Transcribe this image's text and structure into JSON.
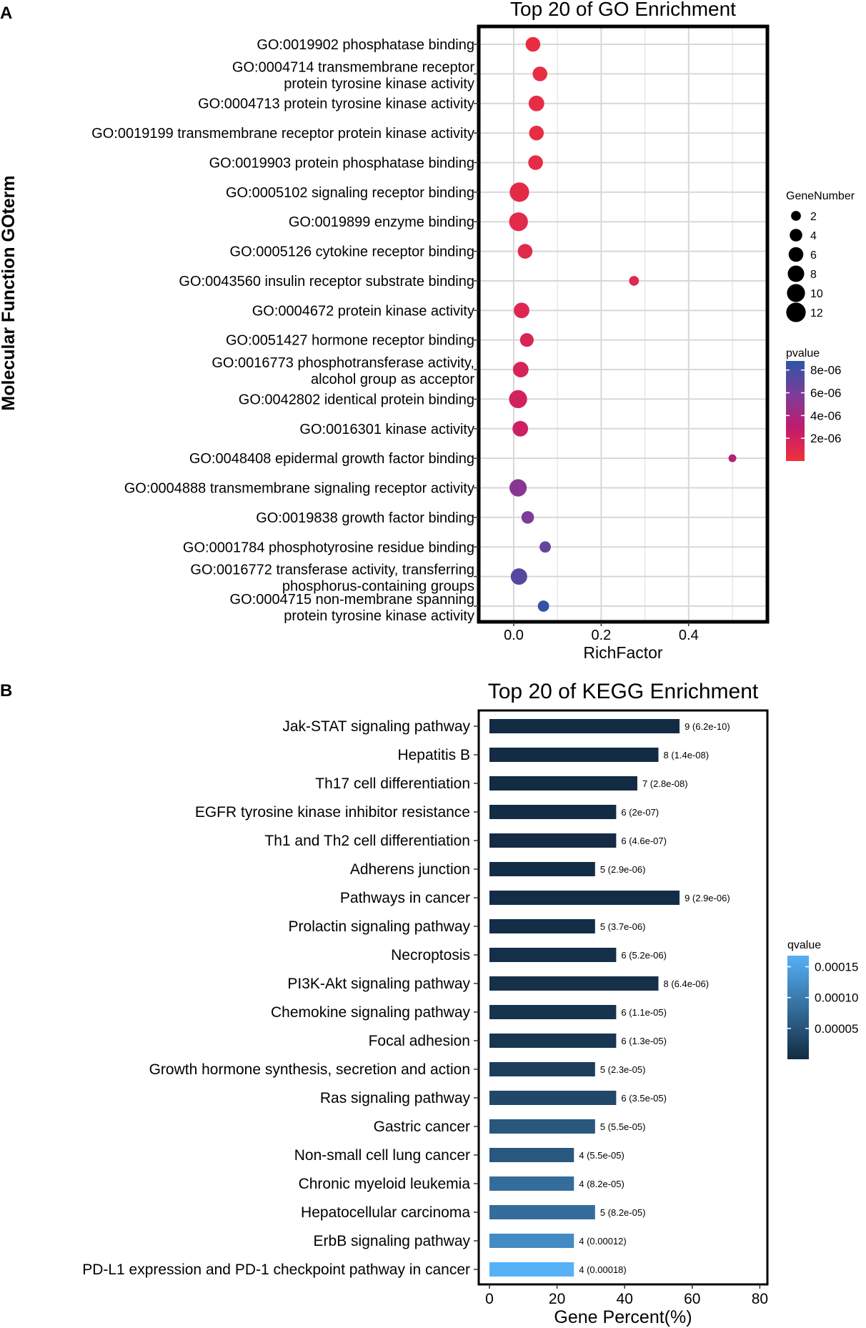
{
  "panelA": {
    "letter": "A",
    "chart_data": {
      "type": "scatter",
      "title": "Top 20 of GO Enrichment",
      "xlabel": "RichFactor",
      "ylabel": "Molecular Function GOterm",
      "xlim": [
        -0.08,
        0.58
      ],
      "xticks": [
        "0.0",
        "0.2",
        "0.4"
      ],
      "xtick_values": [
        0.0,
        0.2,
        0.4
      ],
      "grid": true,
      "size_legend": {
        "title": "GeneNumber",
        "labels": [
          "2",
          "4",
          "6",
          "8",
          "10",
          "12"
        ],
        "values": [
          2,
          4,
          6,
          8,
          10,
          12
        ]
      },
      "color_legend": {
        "title": "pvalue",
        "labels": [
          "8e-06",
          "6e-06",
          "4e-06",
          "2e-06"
        ],
        "values": [
          8e-06,
          6e-06,
          4e-06,
          2e-06
        ],
        "range": [
          0,
          8.8e-06
        ],
        "colors": [
          "#F0313A",
          "#C21B6E",
          "#7B3D99",
          "#2E55A5"
        ]
      },
      "terms": [
        {
          "lines": [
            "GO:0019902 phosphatase binding"
          ],
          "richfactor": 0.044,
          "genes": 6,
          "pvalue": 5e-07
        },
        {
          "lines": [
            "GO:0004714 transmembrane receptor",
            "protein tyrosine kinase activity"
          ],
          "richfactor": 0.06,
          "genes": 6,
          "pvalue": 5e-07
        },
        {
          "lines": [
            "GO:0004713 protein tyrosine kinase activity"
          ],
          "richfactor": 0.052,
          "genes": 7,
          "pvalue": 6e-07
        },
        {
          "lines": [
            "GO:0019199 transmembrane receptor protein kinase activity"
          ],
          "richfactor": 0.052,
          "genes": 6,
          "pvalue": 6e-07
        },
        {
          "lines": [
            "GO:0019903 protein phosphatase binding"
          ],
          "richfactor": 0.05,
          "genes": 6,
          "pvalue": 7e-07
        },
        {
          "lines": [
            "GO:0005102 signaling receptor binding"
          ],
          "richfactor": 0.013,
          "genes": 12,
          "pvalue": 8e-07
        },
        {
          "lines": [
            "GO:0019899 enzyme binding"
          ],
          "richfactor": 0.011,
          "genes": 11,
          "pvalue": 9e-07
        },
        {
          "lines": [
            "GO:0005126 cytokine receptor binding"
          ],
          "richfactor": 0.026,
          "genes": 6,
          "pvalue": 1e-06
        },
        {
          "lines": [
            "GO:0043560 insulin receptor substrate binding"
          ],
          "richfactor": 0.275,
          "genes": 2,
          "pvalue": 1.1e-06
        },
        {
          "lines": [
            "GO:0004672 protein kinase activity"
          ],
          "richfactor": 0.018,
          "genes": 7,
          "pvalue": 1.3e-06
        },
        {
          "lines": [
            "GO:0051427 hormone receptor binding"
          ],
          "richfactor": 0.03,
          "genes": 5,
          "pvalue": 1.5e-06
        },
        {
          "lines": [
            "GO:0016773 phosphotransferase activity,",
            "alcohol group as acceptor"
          ],
          "richfactor": 0.016,
          "genes": 7,
          "pvalue": 1.7e-06
        },
        {
          "lines": [
            "GO:0042802 identical protein binding"
          ],
          "richfactor": 0.01,
          "genes": 10,
          "pvalue": 2e-06
        },
        {
          "lines": [
            "GO:0016301 kinase activity"
          ],
          "richfactor": 0.015,
          "genes": 7,
          "pvalue": 2.3e-06
        },
        {
          "lines": [
            "GO:0048408 epidermal growth factor binding"
          ],
          "richfactor": 0.5,
          "genes": 1,
          "pvalue": 3.6e-06
        },
        {
          "lines": [
            "GO:0004888 transmembrane signaling receptor activity"
          ],
          "richfactor": 0.01,
          "genes": 9,
          "pvalue": 5.3e-06
        },
        {
          "lines": [
            "GO:0019838 growth factor binding"
          ],
          "richfactor": 0.032,
          "genes": 4,
          "pvalue": 5.8e-06
        },
        {
          "lines": [
            "GO:0001784 phosphotyrosine residue binding"
          ],
          "richfactor": 0.072,
          "genes": 3,
          "pvalue": 6.8e-06
        },
        {
          "lines": [
            "GO:0016772 transferase activity, transferring",
            "phosphorus-containing groups"
          ],
          "richfactor": 0.012,
          "genes": 8,
          "pvalue": 7.3e-06
        },
        {
          "lines": [
            "GO:0004715 non-membrane spanning",
            "protein tyrosine kinase activity"
          ],
          "richfactor": 0.068,
          "genes": 3,
          "pvalue": 8.6e-06
        }
      ]
    }
  },
  "panelB": {
    "letter": "B",
    "chart_data": {
      "type": "bar",
      "orientation": "horizontal",
      "title": "Top 20 of KEGG Enrichment",
      "xlabel": "Gene Percent(%)",
      "xlim": [
        0,
        80
      ],
      "xticks": [
        "0",
        "20",
        "40",
        "60",
        "80"
      ],
      "xtick_values": [
        0,
        20,
        40,
        60,
        80
      ],
      "legend": {
        "title": "qvalue",
        "labels": [
          "0.00015",
          "0.00010",
          "0.00005"
        ],
        "values": [
          0.00015,
          0.0001,
          5e-05
        ],
        "range": [
          0,
          0.000168
        ],
        "colors": [
          "#132B43",
          "#56B1F7"
        ]
      },
      "categories": [
        "Jak-STAT signaling pathway",
        "Hepatitis B",
        "Th17 cell differentiation",
        "EGFR tyrosine kinase inhibitor resistance",
        "Th1 and Th2 cell differentiation",
        "Adherens junction",
        "Pathways in cancer",
        "Prolactin signaling pathway",
        "Necroptosis",
        "PI3K-Akt signaling pathway",
        "Chemokine signaling pathway",
        "Focal adhesion",
        "Growth hormone synthesis, secretion and action",
        "Ras signaling pathway",
        "Gastric cancer",
        "Non-small cell lung cancer",
        "Chronic myeloid leukemia",
        "Hepatocellular carcinoma",
        "ErbB signaling pathway",
        "PD-L1 expression and PD-1 checkpoint pathway in cancer"
      ],
      "values": [
        56.25,
        50,
        43.75,
        37.5,
        37.5,
        31.25,
        56.25,
        31.25,
        37.5,
        50,
        37.5,
        37.5,
        31.25,
        37.5,
        31.25,
        25,
        25,
        31.25,
        25,
        25
      ],
      "qvalues": [
        6.2e-10,
        1.4e-08,
        2.8e-08,
        2e-07,
        4.6e-07,
        2.9e-06,
        2.9e-06,
        3.7e-06,
        5.2e-06,
        6.4e-06,
        1.1e-05,
        1.3e-05,
        2.3e-05,
        3.5e-05,
        5.5e-05,
        5.5e-05,
        8.2e-05,
        8.2e-05,
        0.00012,
        0.00018
      ],
      "labels": [
        "9 (6.2e-10)",
        "8 (1.4e-08)",
        "7 (2.8e-08)",
        "6 (2e-07)",
        "6 (4.6e-07)",
        "5 (2.9e-06)",
        "9 (2.9e-06)",
        "5 (3.7e-06)",
        "6 (5.2e-06)",
        "8 (6.4e-06)",
        "6 (1.1e-05)",
        "6 (1.3e-05)",
        "5 (2.3e-05)",
        "6 (3.5e-05)",
        "5 (5.5e-05)",
        "4 (5.5e-05)",
        "4 (8.2e-05)",
        "5 (8.2e-05)",
        "4 (0.00012)",
        "4 (0.00018)"
      ]
    }
  }
}
